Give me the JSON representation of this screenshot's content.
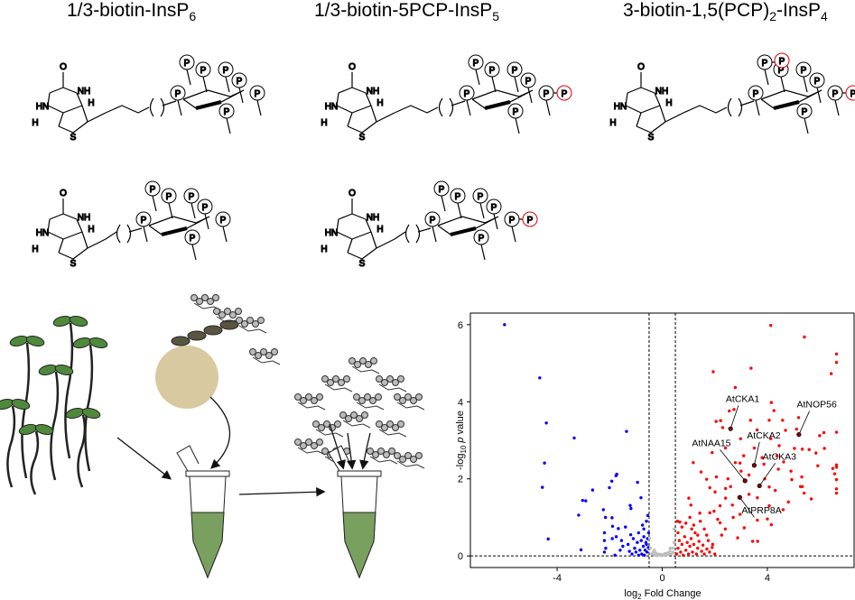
{
  "compounds": [
    {
      "title_main": "1/3-biotin-InsP",
      "title_sub": "6",
      "title_tail": "",
      "title_sub2": "",
      "red_p": [],
      "p_label": "P"
    },
    {
      "title_main": "1/3-biotin-5PCP-InsP",
      "title_sub": "5",
      "title_tail": "",
      "title_sub2": "",
      "red_p": [
        "5"
      ],
      "p_label": "P"
    },
    {
      "title_main": "3-biotin-1,5(PCP)",
      "title_sub": "2",
      "title_tail": "-InsP",
      "title_sub2": "4",
      "red_p": [
        "1",
        "5"
      ],
      "p_label": "P"
    }
  ],
  "structure_labels": {
    "nh": "NH",
    "hn": "HN",
    "h": "H",
    "s": "S",
    "o": "O"
  },
  "colors": {
    "red": "#e00000",
    "blue": "#0000ff",
    "gray": "#bdbdbd",
    "bead": "#d8c9a0",
    "leaf": "#4f8a3c"
  },
  "chart_data": {
    "type": "scatter",
    "xlabel": "log2 Fold Change",
    "xlabel_parts": {
      "pre": "log",
      "sub": "2",
      "post": " Fold Change"
    },
    "ylabel": "-log10 p value",
    "ylabel_parts": {
      "pre": "-log",
      "sub": "10",
      "mid": " ",
      "ital": "p",
      "post": " value"
    },
    "xlim": [
      -7.3,
      7.3
    ],
    "ylim": [
      -0.3,
      6.3
    ],
    "xticks": [
      -4,
      0,
      4
    ],
    "yticks": [
      0,
      2,
      4,
      6
    ],
    "thresholds": {
      "x": [
        -0.5,
        0.5
      ],
      "y": 0
    },
    "grid": false,
    "series": [
      {
        "color": "#0000ff",
        "points": [
          [
            -6.0,
            6.0
          ],
          [
            -4.66,
            4.62
          ],
          [
            -4.41,
            3.45
          ],
          [
            -3.35,
            3.06
          ],
          [
            -4.48,
            2.41
          ],
          [
            -4.56,
            1.78
          ],
          [
            -4.34,
            0.44
          ],
          [
            -3.09,
            0.16
          ],
          [
            -1.36,
            3.23
          ],
          [
            -2.65,
            1.71
          ],
          [
            -3.03,
            1.44
          ],
          [
            -2.91,
            1.43
          ],
          [
            -3.18,
            1.06
          ],
          [
            -1.73,
            2.12
          ],
          [
            -1.76,
            2.08
          ],
          [
            -1.92,
            1.94
          ],
          [
            -2.01,
            1.77
          ],
          [
            -0.94,
            1.91
          ],
          [
            -0.81,
            1.51
          ],
          [
            -1.22,
            1.31
          ],
          [
            -1.19,
            1.23
          ],
          [
            -2.24,
            1.2
          ],
          [
            -2.16,
            1.0
          ],
          [
            -1.91,
            0.99
          ],
          [
            -1.89,
            0.77
          ],
          [
            -1.67,
            0.71
          ],
          [
            -2.2,
            0.6
          ],
          [
            -2.2,
            0.4
          ],
          [
            -2.15,
            0.2
          ],
          [
            -1.9,
            0.45
          ],
          [
            -1.75,
            0.5
          ],
          [
            -1.55,
            0.4
          ],
          [
            -1.5,
            0.25
          ],
          [
            -1.4,
            0.75
          ],
          [
            -1.3,
            0.3
          ],
          [
            -1.2,
            0.55
          ],
          [
            -1.1,
            0.45
          ],
          [
            -1.05,
            0.2
          ],
          [
            -1.0,
            0.1
          ],
          [
            -0.95,
            0.35
          ],
          [
            -0.9,
            0.6
          ],
          [
            -0.85,
            0.15
          ],
          [
            -0.8,
            0.4
          ],
          [
            -0.78,
            0.05
          ],
          [
            -0.75,
            0.8
          ],
          [
            -0.72,
            0.25
          ],
          [
            -0.7,
            0.5
          ],
          [
            -0.68,
            0.02
          ],
          [
            -0.65,
            0.15
          ],
          [
            -0.62,
            0.35
          ],
          [
            -0.6,
            0.9
          ],
          [
            -0.58,
            0.1
          ],
          [
            -0.56,
            0.45
          ],
          [
            -0.55,
            1.05
          ],
          [
            -0.53,
            0.22
          ],
          [
            -0.52,
            0.6
          ],
          [
            -1.15,
            0.05
          ],
          [
            -0.9,
            0.02
          ],
          [
            -1.25,
            0.12
          ],
          [
            -0.7,
            0.7
          ],
          [
            -0.6,
            0.3
          ],
          [
            -1.8,
            0.02
          ],
          [
            -2.2,
            0.1
          ],
          [
            -1.6,
            0.15
          ]
        ]
      },
      {
        "color": "#bdbdbd",
        "points": [
          [
            -0.45,
            0.2
          ],
          [
            -0.4,
            0.05
          ],
          [
            -0.35,
            0.1
          ],
          [
            -0.3,
            0.02
          ],
          [
            -0.25,
            0.08
          ],
          [
            -0.2,
            0.01
          ],
          [
            -0.15,
            0.05
          ],
          [
            -0.1,
            0.02
          ],
          [
            -0.05,
            0.04
          ],
          [
            0.0,
            0.01
          ],
          [
            0.05,
            0.03
          ],
          [
            0.1,
            0.06
          ],
          [
            0.15,
            0.02
          ],
          [
            0.2,
            0.08
          ],
          [
            0.25,
            0.04
          ],
          [
            0.3,
            0.12
          ],
          [
            0.35,
            0.05
          ],
          [
            0.4,
            0.2
          ],
          [
            0.45,
            0.35
          ],
          [
            0.45,
            0.7
          ],
          [
            -0.48,
            0.45
          ],
          [
            0.42,
            0.1
          ],
          [
            -0.3,
            0.15
          ],
          [
            0.3,
            0.2
          ]
        ]
      },
      {
        "color": "#ff0000",
        "points": [
          [
            4.13,
            5.98
          ],
          [
            5.41,
            5.68
          ],
          [
            6.63,
            5.24
          ],
          [
            6.63,
            5.02
          ],
          [
            6.43,
            4.73
          ],
          [
            1.94,
            4.78
          ],
          [
            3.38,
            4.87
          ],
          [
            2.78,
            4.37
          ],
          [
            4.15,
            3.98
          ],
          [
            4.25,
            3.77
          ],
          [
            2.55,
            3.76
          ],
          [
            2.73,
            3.8
          ],
          [
            3.36,
            3.52
          ],
          [
            4.07,
            3.52
          ],
          [
            4.58,
            3.52
          ],
          [
            5.19,
            3.59
          ],
          [
            2.05,
            3.49
          ],
          [
            2.22,
            3.51
          ],
          [
            2.3,
            3.33
          ],
          [
            3.61,
            3.27
          ],
          [
            5.11,
            3.29
          ],
          [
            6.63,
            3.21
          ],
          [
            6.15,
            3.2
          ],
          [
            5.99,
            3.12
          ],
          [
            4.69,
            3.26
          ],
          [
            2.98,
            3.04
          ],
          [
            4.13,
            3.04
          ],
          [
            2.41,
            2.8
          ],
          [
            4.45,
            2.86
          ],
          [
            5.03,
            2.79
          ],
          [
            5.33,
            2.77
          ],
          [
            5.59,
            2.76
          ],
          [
            5.85,
            2.67
          ],
          [
            6.17,
            2.79
          ],
          [
            6.63,
            2.36
          ],
          [
            6.63,
            2.3
          ],
          [
            5.92,
            2.34
          ],
          [
            6.49,
            2.27
          ],
          [
            6.56,
            2.13
          ],
          [
            6.63,
            1.98
          ],
          [
            6.63,
            1.74
          ],
          [
            6.63,
            1.63
          ],
          [
            5.31,
            2.05
          ],
          [
            5.26,
            1.8
          ],
          [
            5.33,
            1.8
          ],
          [
            5.67,
            1.48
          ],
          [
            5.4,
            1.63
          ],
          [
            4.93,
            1.98
          ],
          [
            1.18,
            2.42
          ],
          [
            1.9,
            2.68
          ],
          [
            1.48,
            2.18
          ],
          [
            1.69,
            1.99
          ],
          [
            2.06,
            2.05
          ],
          [
            1.81,
            1.77
          ],
          [
            2.01,
            1.66
          ],
          [
            2.41,
            1.75
          ],
          [
            2.6,
            1.8
          ],
          [
            2.78,
            2.42
          ],
          [
            2.96,
            2.41
          ],
          [
            4.37,
            2.59
          ],
          [
            4.62,
            2.44
          ],
          [
            3.8,
            2.55
          ],
          [
            3.87,
            2.38
          ],
          [
            4.42,
            2.25
          ],
          [
            4.07,
            1.79
          ],
          [
            3.62,
            1.51
          ],
          [
            4.8,
            1.4
          ],
          [
            4.07,
            1.3
          ],
          [
            3.62,
            0.93
          ],
          [
            4.0,
            0.96
          ],
          [
            4.15,
            0.81
          ],
          [
            3.12,
            0.73
          ],
          [
            2.87,
            0.47
          ],
          [
            3.44,
            0.38
          ],
          [
            3.63,
            0.38
          ],
          [
            2.96,
            1.08
          ],
          [
            2.67,
            1.32
          ],
          [
            2.41,
            1.5
          ],
          [
            2.11,
            0.95
          ],
          [
            1.81,
            1.12
          ],
          [
            1.43,
            1.11
          ],
          [
            1.01,
            1.5
          ],
          [
            1.09,
            1.32
          ],
          [
            1.05,
            1.0
          ],
          [
            0.67,
            0.88
          ],
          [
            1.12,
            0.7
          ],
          [
            1.35,
            0.54
          ],
          [
            1.69,
            0.54
          ],
          [
            1.92,
            0.3
          ],
          [
            2.26,
            0.54
          ],
          [
            2.2,
            0.86
          ],
          [
            1.97,
            1.16
          ],
          [
            3.3,
            2.1
          ],
          [
            3.0,
            2.2
          ],
          [
            2.5,
            2.0
          ],
          [
            2.2,
            1.3
          ],
          [
            2.7,
            1.0
          ],
          [
            3.3,
            1.6
          ],
          [
            3.9,
            2.0
          ],
          [
            4.3,
            1.7
          ],
          [
            4.6,
            1.2
          ],
          [
            2.4,
            0.7
          ],
          [
            3.1,
            2.6
          ],
          [
            3.5,
            2.8
          ],
          [
            4.9,
            2.2
          ],
          [
            0.55,
            0.05
          ],
          [
            0.6,
            0.2
          ],
          [
            0.65,
            0.4
          ],
          [
            0.7,
            0.1
          ],
          [
            0.75,
            0.3
          ],
          [
            0.8,
            0.02
          ],
          [
            0.85,
            0.5
          ],
          [
            0.9,
            0.15
          ],
          [
            0.95,
            0.35
          ],
          [
            1.0,
            0.05
          ],
          [
            1.05,
            0.25
          ],
          [
            1.1,
            0.45
          ],
          [
            1.15,
            0.1
          ],
          [
            1.2,
            0.3
          ],
          [
            1.25,
            0.6
          ],
          [
            1.3,
            0.05
          ],
          [
            1.35,
            0.2
          ],
          [
            1.4,
            0.38
          ],
          [
            1.5,
            0.12
          ],
          [
            1.55,
            0.28
          ],
          [
            1.6,
            0.05
          ],
          [
            1.7,
            0.18
          ],
          [
            1.8,
            0.1
          ],
          [
            1.9,
            0.22
          ],
          [
            2.0,
            0.05
          ],
          [
            0.6,
            0.6
          ],
          [
            0.75,
            0.75
          ],
          [
            0.9,
            0.85
          ],
          [
            1.2,
            0.8
          ],
          [
            1.45,
            0.9
          ],
          [
            0.58,
            0.9
          ],
          [
            1.6,
            0.7
          ],
          [
            1.75,
            0.4
          ]
        ]
      }
    ],
    "annotations": [
      {
        "label": "AtCKA1",
        "x": 2.6,
        "y": 3.3
      },
      {
        "label": "AtNOP56",
        "x": 5.2,
        "y": 3.15
      },
      {
        "label": "AtCKA2",
        "x": 3.5,
        "y": 2.35
      },
      {
        "label": "AtNAA15",
        "x": 3.15,
        "y": 1.95
      },
      {
        "label": "AtCKA3",
        "x": 3.7,
        "y": 1.82
      },
      {
        "label": "AtPRP8A",
        "x": 2.95,
        "y": 1.52
      }
    ]
  }
}
